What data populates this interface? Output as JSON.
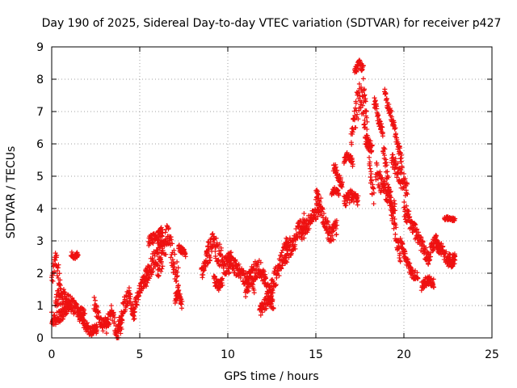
{
  "chart_data": {
    "type": "scatter",
    "title": "Day 190 of 2025, Sidereal Day-to-day VTEC variation (SDTVAR) for receiver p427",
    "xlabel": "GPS time / hours",
    "ylabel": "SDTVAR / TECUs",
    "xlim": [
      0,
      25
    ],
    "ylim": [
      0,
      9
    ],
    "xticks": [
      "0",
      "5",
      "10",
      "15",
      "20",
      "25"
    ],
    "yticks": [
      "0",
      "1",
      "2",
      "3",
      "4",
      "5",
      "6",
      "7",
      "8",
      "9"
    ],
    "grid": true,
    "marker_color": "#ee1111",
    "series": [
      {
        "name": "SDTVAR",
        "segments": [
          {
            "x0": 0.0,
            "x1": 0.5,
            "y": [
              1.7,
              2.4,
              2.2,
              1.5
            ],
            "spread": 0.3
          },
          {
            "x0": 0.0,
            "x1": 1.0,
            "y": [
              0.6,
              0.6,
              0.8,
              1.0
            ],
            "spread": 0.2
          },
          {
            "x0": 0.2,
            "x1": 1.9,
            "y": [
              1.2,
              1.3,
              1.1,
              0.8,
              0.6
            ],
            "spread": 0.25
          },
          {
            "x0": 1.1,
            "x1": 1.5,
            "y": [
              2.6,
              2.5,
              2.6
            ],
            "spread": 0.08
          },
          {
            "x0": 1.5,
            "x1": 2.6,
            "y": [
              0.8,
              0.4,
              0.2,
              0.3
            ],
            "spread": 0.15
          },
          {
            "x0": 2.4,
            "x1": 3.2,
            "y": [
              1.1,
              0.6,
              0.4,
              0.5
            ],
            "spread": 0.2
          },
          {
            "x0": 3.1,
            "x1": 4.0,
            "y": [
              0.3,
              0.9,
              0.1,
              0.5
            ],
            "spread": 0.25
          },
          {
            "x0": 3.8,
            "x1": 4.7,
            "y": [
              0.4,
              1.0,
              1.3,
              0.6
            ],
            "spread": 0.25
          },
          {
            "x0": 4.6,
            "x1": 5.5,
            "y": [
              0.8,
              1.3,
              1.7,
              2.0
            ],
            "spread": 0.2
          },
          {
            "x0": 5.3,
            "x1": 6.3,
            "y": [
              1.8,
              2.2,
              2.6,
              2.8
            ],
            "spread": 0.3
          },
          {
            "x0": 5.5,
            "x1": 6.3,
            "y": [
              3.0,
              3.1,
              3.3
            ],
            "spread": 0.15
          },
          {
            "x0": 6.0,
            "x1": 7.2,
            "y": [
              2.0,
              2.6,
              3.2,
              2.4,
              1.8
            ],
            "spread": 0.4
          },
          {
            "x0": 7.0,
            "x1": 7.4,
            "y": [
              1.2,
              1.4,
              1.0
            ],
            "spread": 0.15
          },
          {
            "x0": 7.2,
            "x1": 7.6,
            "y": [
              2.8,
              2.7,
              2.6
            ],
            "spread": 0.1
          },
          {
            "x0": 8.5,
            "x1": 8.9,
            "y": [
              2.0,
              2.2,
              2.9
            ],
            "spread": 0.2
          },
          {
            "x0": 8.8,
            "x1": 10.2,
            "y": [
              2.5,
              2.9,
              2.6,
              2.2,
              2.4
            ],
            "spread": 0.35
          },
          {
            "x0": 9.2,
            "x1": 9.7,
            "y": [
              1.8,
              1.6,
              1.7
            ],
            "spread": 0.15
          },
          {
            "x0": 10.0,
            "x1": 11.5,
            "y": [
              2.4,
              2.2,
              2.0,
              1.8,
              1.6
            ],
            "spread": 0.25
          },
          {
            "x0": 11.0,
            "x1": 12.5,
            "y": [
              1.5,
              2.0,
              2.2,
              1.8,
              1.2
            ],
            "spread": 0.3
          },
          {
            "x0": 11.8,
            "x1": 12.6,
            "y": [
              0.8,
              1.0,
              1.2,
              1.0
            ],
            "spread": 0.2
          },
          {
            "x0": 12.4,
            "x1": 13.4,
            "y": [
              1.4,
              1.8,
              2.2,
              2.6,
              2.9
            ],
            "spread": 0.3
          },
          {
            "x0": 13.2,
            "x1": 14.4,
            "y": [
              2.4,
              2.8,
              3.0,
              3.4,
              3.6
            ],
            "spread": 0.3
          },
          {
            "x0": 14.2,
            "x1": 15.2,
            "y": [
              3.2,
              3.5,
              3.8,
              4.0
            ],
            "spread": 0.25
          },
          {
            "x0": 15.0,
            "x1": 16.2,
            "y": [
              4.5,
              4.0,
              3.4,
              3.2,
              3.5
            ],
            "spread": 0.3
          },
          {
            "x0": 15.9,
            "x1": 16.3,
            "y": [
              4.5,
              4.6,
              4.5
            ],
            "spread": 0.1
          },
          {
            "x0": 16.0,
            "x1": 16.5,
            "y": [
              5.3,
              5.2,
              4.9,
              4.7
            ],
            "spread": 0.15
          },
          {
            "x0": 16.6,
            "x1": 17.1,
            "y": [
              5.5,
              5.7,
              5.4
            ],
            "spread": 0.15
          },
          {
            "x0": 16.6,
            "x1": 17.4,
            "y": [
              4.2,
              4.4,
              4.3
            ],
            "spread": 0.2
          },
          {
            "x0": 17.0,
            "x1": 17.8,
            "y": [
              6.2,
              7.0,
              7.5,
              6.5
            ],
            "spread": 0.5
          },
          {
            "x0": 17.2,
            "x1": 17.7,
            "y": [
              8.2,
              8.5,
              8.3
            ],
            "spread": 0.12
          },
          {
            "x0": 17.7,
            "x1": 18.3,
            "y": [
              7.8,
              7.0,
              5.8,
              4.8,
              4.3
            ],
            "spread": 0.25
          },
          {
            "x0": 17.8,
            "x1": 18.2,
            "y": [
              6.2,
              5.8
            ],
            "spread": 0.2
          },
          {
            "x0": 18.3,
            "x1": 18.8,
            "y": [
              7.4,
              6.8,
              6.4
            ],
            "spread": 0.2
          },
          {
            "x0": 18.4,
            "x1": 19.5,
            "y": [
              5.2,
              4.8,
              4.6,
              4.3,
              4.0
            ],
            "spread": 0.3
          },
          {
            "x0": 18.8,
            "x1": 19.8,
            "y": [
              6.0,
              5.0,
              4.0,
              3.2,
              2.6
            ],
            "spread": 0.3
          },
          {
            "x0": 18.9,
            "x1": 19.2,
            "y": [
              7.6,
              7.2,
              7.0
            ],
            "spread": 0.15
          },
          {
            "x0": 19.2,
            "x1": 19.9,
            "y": [
              7.0,
              6.5,
              6.0,
              5.4
            ],
            "spread": 0.2
          },
          {
            "x0": 19.3,
            "x1": 20.2,
            "y": [
              5.5,
              5.0,
              4.6
            ],
            "spread": 0.3
          },
          {
            "x0": 19.8,
            "x1": 20.8,
            "y": [
              3.0,
              2.4,
              2.0,
              1.9
            ],
            "spread": 0.15
          },
          {
            "x0": 20.0,
            "x1": 21.4,
            "y": [
              4.0,
              3.6,
              3.2,
              2.8,
              2.4
            ],
            "spread": 0.25
          },
          {
            "x0": 21.0,
            "x1": 21.7,
            "y": [
              1.6,
              1.8,
              1.7
            ],
            "spread": 0.15
          },
          {
            "x0": 21.4,
            "x1": 22.0,
            "y": [
              2.5,
              2.8,
              3.0,
              2.8
            ],
            "spread": 0.2
          },
          {
            "x0": 21.8,
            "x1": 22.9,
            "y": [
              3.0,
              2.7,
              2.4,
              2.5
            ],
            "spread": 0.2
          },
          {
            "x0": 22.3,
            "x1": 22.9,
            "y": [
              3.7,
              3.7,
              3.65
            ],
            "spread": 0.05
          },
          {
            "x0": 22.6,
            "x1": 22.9,
            "y": [
              2.4,
              2.2,
              2.6
            ],
            "spread": 0.1
          }
        ]
      }
    ]
  }
}
